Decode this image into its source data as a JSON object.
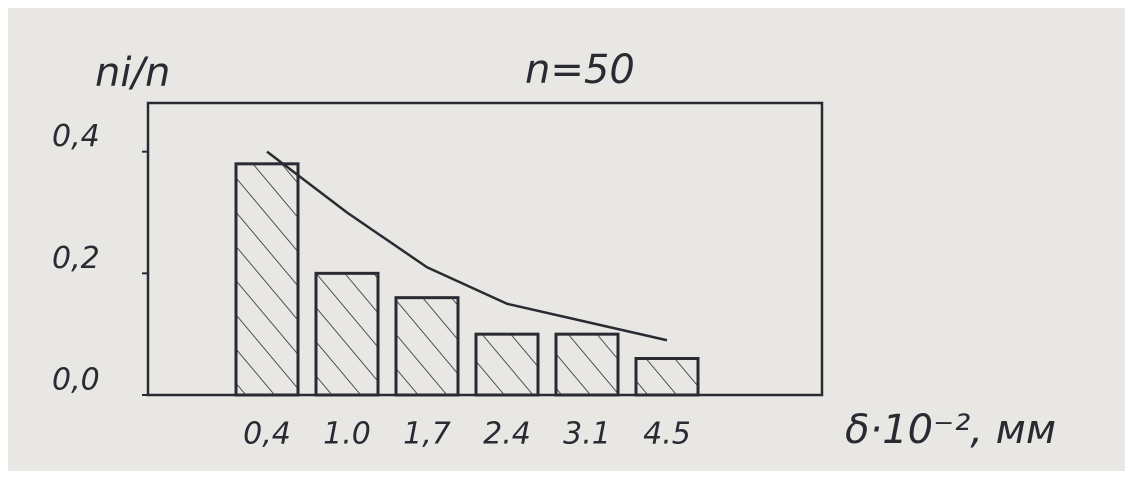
{
  "chart_data": {
    "type": "bar",
    "title": "n=50",
    "y_label": "ni/n",
    "x_label": "δ·10⁻², мм",
    "categories": [
      "0,4",
      "1.0",
      "1,7",
      "2.4",
      "3.1",
      "4.5"
    ],
    "values": [
      0.38,
      0.2,
      0.16,
      0.1,
      0.1,
      0.06
    ],
    "curve": [
      0.4,
      0.3,
      0.21,
      0.15,
      0.12,
      0.09
    ],
    "color": "#2a2a33",
    "ylim": [
      0,
      0.48
    ],
    "yticks": [
      {
        "value": 0,
        "label": "0,0"
      },
      {
        "value": 0.2,
        "label": "0,2"
      },
      {
        "value": 0.4,
        "label": "0,4"
      }
    ]
  }
}
